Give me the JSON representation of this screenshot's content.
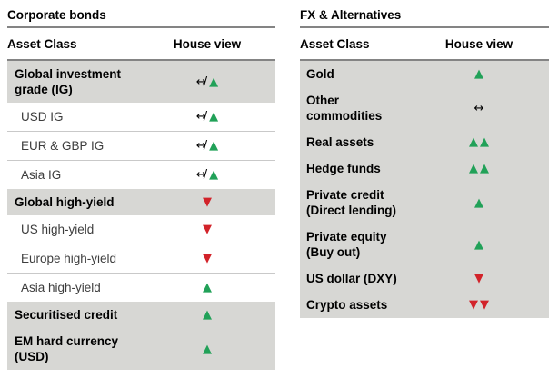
{
  "colors": {
    "positive_green": "#21a158",
    "negative_red": "#d2232a",
    "neutral_black": "#000000",
    "row_highlight_gray": "#d7d7d4",
    "rule_gray": "#848484"
  },
  "symbols": {
    "positive": {
      "parts": [
        {
          "glyph": "▲",
          "color": "#21a158",
          "name": "up-triangle-icon"
        }
      ]
    },
    "double_positive": {
      "parts": [
        {
          "glyph": "▲",
          "color": "#21a158",
          "name": "up-triangle-icon"
        },
        {
          "glyph": "▲",
          "color": "#21a158",
          "name": "up-triangle-icon"
        }
      ]
    },
    "negative": {
      "parts": [
        {
          "glyph": "▼",
          "color": "#d2232a",
          "name": "down-triangle-icon"
        }
      ]
    },
    "double_negative": {
      "parts": [
        {
          "glyph": "▼",
          "color": "#d2232a",
          "name": "down-triangle-icon"
        },
        {
          "glyph": "▼",
          "color": "#d2232a",
          "name": "down-triangle-icon"
        }
      ]
    },
    "neutral": {
      "parts": [
        {
          "glyph": "↔",
          "color": "#000000",
          "name": "neutral-arrow-icon"
        }
      ]
    },
    "neutral_to_positive": {
      "parts": [
        {
          "glyph": "↔/",
          "color": "#000000",
          "name": "neutral-to-positive-arrow-icon"
        },
        {
          "glyph": "▲",
          "color": "#21a158",
          "name": "up-triangle-icon"
        }
      ]
    }
  },
  "tables": [
    {
      "title": "Corporate bonds",
      "columns": {
        "asset_class": "Asset Class",
        "house_view": "House view"
      },
      "rows": [
        {
          "label": "Global investment\ngrade (IG)",
          "emphasis": true,
          "house_view": "neutral_to_positive"
        },
        {
          "label": "USD IG",
          "emphasis": false,
          "house_view": "neutral_to_positive"
        },
        {
          "label": "EUR & GBP IG",
          "emphasis": false,
          "house_view": "neutral_to_positive"
        },
        {
          "label": "Asia IG",
          "emphasis": false,
          "house_view": "neutral_to_positive"
        },
        {
          "label": "Global high-yield",
          "emphasis": true,
          "house_view": "negative"
        },
        {
          "label": "US high-yield",
          "emphasis": false,
          "house_view": "negative"
        },
        {
          "label": "Europe high-yield",
          "emphasis": false,
          "house_view": "negative"
        },
        {
          "label": "Asia high-yield",
          "emphasis": false,
          "house_view": "positive"
        },
        {
          "label": "Securitised credit",
          "emphasis": true,
          "house_view": "positive"
        },
        {
          "label": "EM hard currency\n(USD)",
          "emphasis": true,
          "house_view": "positive"
        }
      ]
    },
    {
      "title": "FX & Alternatives",
      "columns": {
        "asset_class": "Asset Class",
        "house_view": "House view"
      },
      "rows": [
        {
          "label": "Gold",
          "emphasis": true,
          "house_view": "positive"
        },
        {
          "label": "Other\ncommodities",
          "emphasis": true,
          "house_view": "neutral"
        },
        {
          "label": "Real assets",
          "emphasis": true,
          "house_view": "double_positive"
        },
        {
          "label": "Hedge funds",
          "emphasis": true,
          "house_view": "double_positive"
        },
        {
          "label": "Private credit\n(Direct lending)",
          "emphasis": true,
          "house_view": "positive"
        },
        {
          "label": "Private equity\n(Buy out)",
          "emphasis": true,
          "house_view": "positive"
        },
        {
          "label": "US dollar (DXY)",
          "emphasis": true,
          "house_view": "negative"
        },
        {
          "label": "Crypto assets",
          "emphasis": true,
          "house_view": "double_negative"
        }
      ]
    }
  ]
}
